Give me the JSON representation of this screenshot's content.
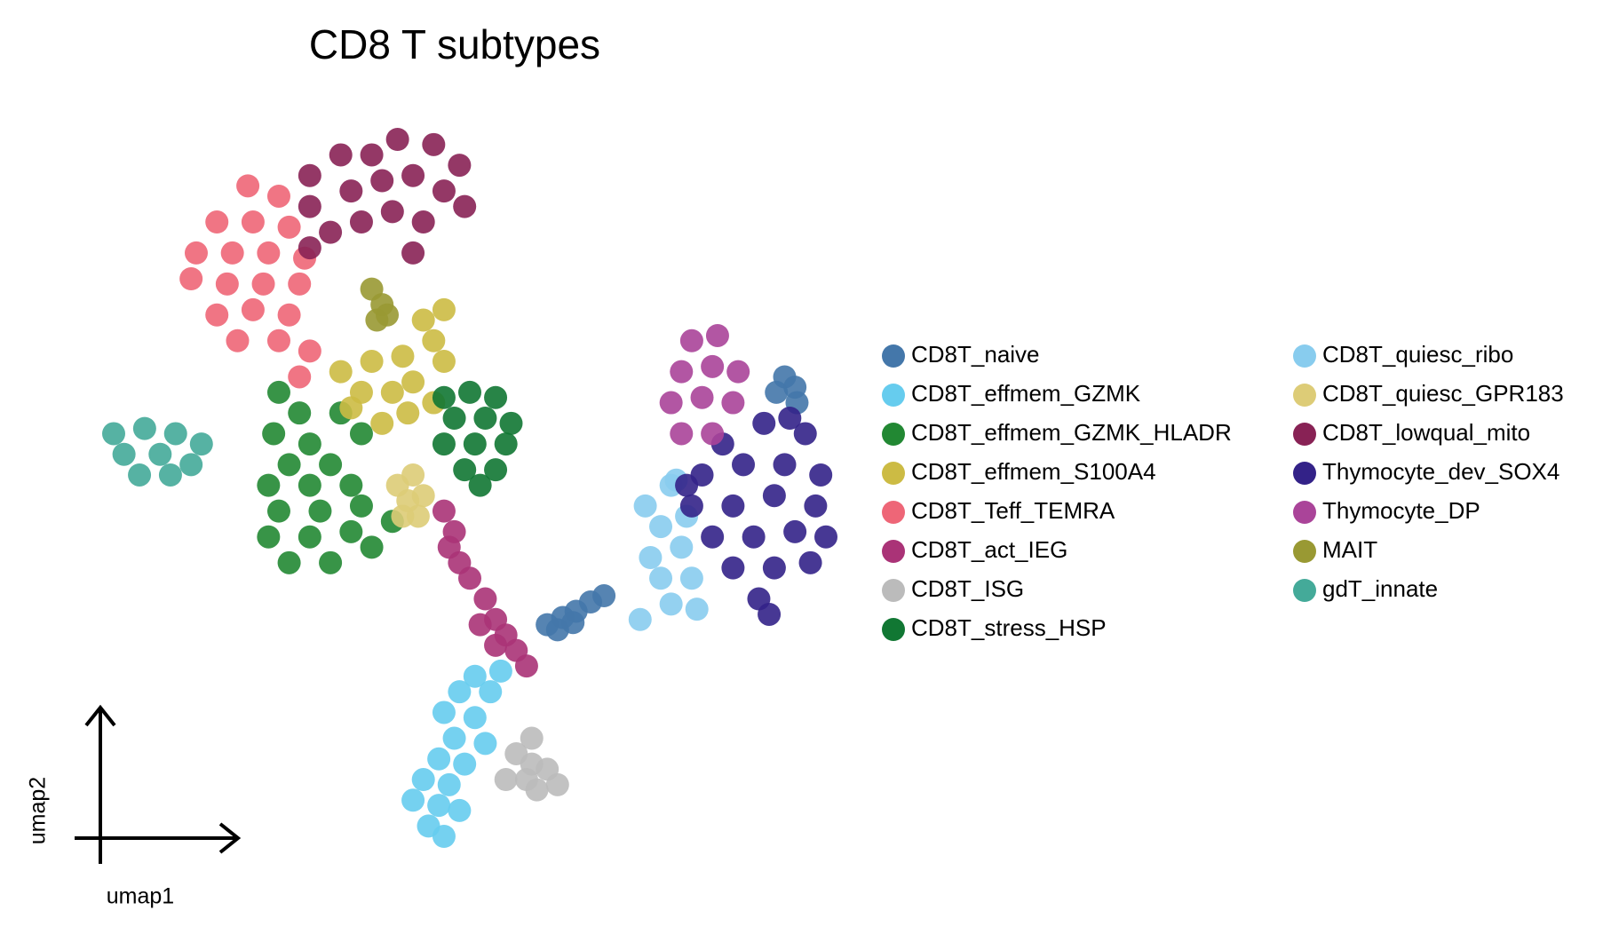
{
  "chart_data": {
    "type": "scatter",
    "title": "CD8 T subtypes",
    "xlabel": "umap1",
    "ylabel": "umap2",
    "legend": "right",
    "series": [
      {
        "name": "CD8T_naive",
        "color": "#4477aa",
        "x": [
          53,
          54.5,
          55.8,
          57.2,
          58.5,
          54,
          55.5,
          76,
          77,
          75.2,
          77.2
        ],
        "y": [
          29.5,
          30.2,
          30.8,
          31.7,
          32.3,
          29,
          29.7,
          53.5,
          52.5,
          52,
          51
        ]
      },
      {
        "name": "CD8T_effmem_GZMK",
        "color": "#66ccee",
        "x": [
          46,
          44.5,
          47.5,
          43,
          46,
          44,
          47,
          42.5,
          45,
          41,
          43.5,
          40,
          42.5,
          44.5,
          41.5,
          43,
          48.5
        ],
        "y": [
          24.5,
          23,
          23,
          21,
          20.5,
          18.5,
          18,
          16.5,
          16,
          14.5,
          14,
          12.5,
          12,
          11.5,
          10,
          9,
          25
        ]
      },
      {
        "name": "CD8T_effmem_GZMK_HLADR",
        "color": "#228833",
        "x": [
          27,
          29,
          26.5,
          30,
          28,
          32,
          26,
          30,
          34,
          27,
          31,
          35,
          26,
          30,
          34,
          38,
          28,
          32,
          36,
          35,
          33
        ],
        "y": [
          52,
          50,
          48,
          47,
          45,
          45,
          43,
          43,
          43,
          40.5,
          40.5,
          41,
          38,
          38,
          38.5,
          39.5,
          35.5,
          35.5,
          37,
          48,
          50
        ]
      },
      {
        "name": "CD8T_effmem_S100A4",
        "color": "#ccbb44",
        "x": [
          33,
          36,
          39,
          42,
          43,
          41,
          35,
          38,
          40,
          37,
          39.5,
          34,
          43,
          42
        ],
        "y": [
          54,
          55,
          55.5,
          57,
          60,
          59,
          52,
          52,
          53,
          49,
          50,
          50.5,
          55,
          51
        ]
      },
      {
        "name": "CD8T_Teff_TEMRA",
        "color": "#ee6677",
        "x": [
          24,
          27,
          21,
          24.5,
          28,
          19,
          22.5,
          26,
          29.5,
          18.5,
          22,
          25.5,
          29,
          21,
          24.5,
          28,
          23,
          27,
          30,
          29
        ],
        "y": [
          72,
          71,
          68.5,
          68.5,
          68,
          65.5,
          65.5,
          65.5,
          65,
          63,
          62.5,
          62.5,
          62.5,
          59.5,
          60,
          59.5,
          57,
          57,
          56,
          53.5
        ]
      },
      {
        "name": "CD8T_act_IEG",
        "color": "#aa3377",
        "x": [
          43,
          44,
          43.5,
          44.5,
          45.5,
          47,
          48,
          46.5,
          49,
          50,
          51,
          48
        ],
        "y": [
          40.5,
          38.5,
          37,
          35.5,
          34,
          32,
          30,
          29.5,
          28.5,
          27,
          25.5,
          27.5
        ]
      },
      {
        "name": "CD8T_ISG",
        "color": "#bbbbbb",
        "x": [
          50,
          51.5,
          53,
          51,
          54,
          52,
          49,
          51.5
        ],
        "y": [
          17,
          16,
          15.5,
          14.5,
          14,
          13.5,
          14.5,
          18.5
        ]
      },
      {
        "name": "CD8T_stress_HSP",
        "color": "#117733",
        "x": [
          43,
          45.5,
          48,
          44,
          47,
          49.5,
          43,
          46,
          49,
          45,
          48,
          46.5
        ],
        "y": [
          51.5,
          52,
          51.5,
          49.5,
          49.5,
          49,
          47,
          47,
          47,
          44.5,
          44.5,
          43
        ]
      },
      {
        "name": "CD8T_quiesc_ribo",
        "color": "#88ccee",
        "x": [
          62.5,
          65,
          64,
          66.5,
          63,
          66,
          64,
          67,
          65,
          67.5,
          62,
          65.5
        ],
        "y": [
          41,
          43,
          39,
          40,
          36,
          37,
          34,
          34,
          31.5,
          31,
          30,
          43.5
        ]
      },
      {
        "name": "CD8T_quiesc_GPR183",
        "color": "#ddcc77",
        "x": [
          38.5,
          40,
          39.5,
          41,
          39,
          40.5
        ],
        "y": [
          43,
          44,
          41.5,
          42,
          40,
          40
        ]
      },
      {
        "name": "CD8T_lowqual_mito",
        "color": "#882255",
        "x": [
          30,
          33,
          30,
          34,
          32,
          36,
          38.5,
          42,
          44.5,
          37,
          40,
          43,
          45,
          38,
          41,
          35,
          30,
          40
        ],
        "y": [
          73,
          75,
          70,
          71.5,
          67.5,
          75,
          76.5,
          76,
          74,
          72.5,
          73,
          71.5,
          70,
          69.5,
          68.5,
          68.5,
          66,
          65.5
        ]
      },
      {
        "name": "Thymocyte_dev_SOX4",
        "color": "#332288",
        "x": [
          70,
          74,
          78,
          68,
          72,
          76,
          79.5,
          67,
          71,
          75,
          79,
          69,
          73,
          77,
          80,
          71,
          75,
          78.5,
          73.5,
          74.5,
          76.5,
          66.5
        ],
        "y": [
          47,
          49,
          48,
          44,
          45,
          45,
          44,
          41,
          41,
          42,
          41,
          38,
          38,
          38.5,
          38,
          35,
          35,
          35.5,
          32,
          30.5,
          49.5,
          43
        ]
      },
      {
        "name": "Thymocyte_DP",
        "color": "#aa4499",
        "x": [
          67,
          69.5,
          66,
          69,
          71.5,
          65,
          68,
          71,
          66,
          69
        ],
        "y": [
          57,
          57.5,
          54,
          54.5,
          54,
          51,
          51.5,
          51,
          48,
          48
        ]
      },
      {
        "name": "MAIT",
        "color": "#999933",
        "x": [
          36,
          37,
          36.5,
          37.5
        ],
        "y": [
          62,
          60.5,
          59,
          59.5
        ]
      },
      {
        "name": "gdT_innate",
        "color": "#44aa99",
        "x": [
          11,
          14,
          17,
          19.5,
          12,
          15.5,
          18.5,
          13.5,
          16.5
        ],
        "y": [
          48,
          48.5,
          48,
          47,
          46,
          46,
          45,
          44,
          44
        ]
      }
    ]
  }
}
